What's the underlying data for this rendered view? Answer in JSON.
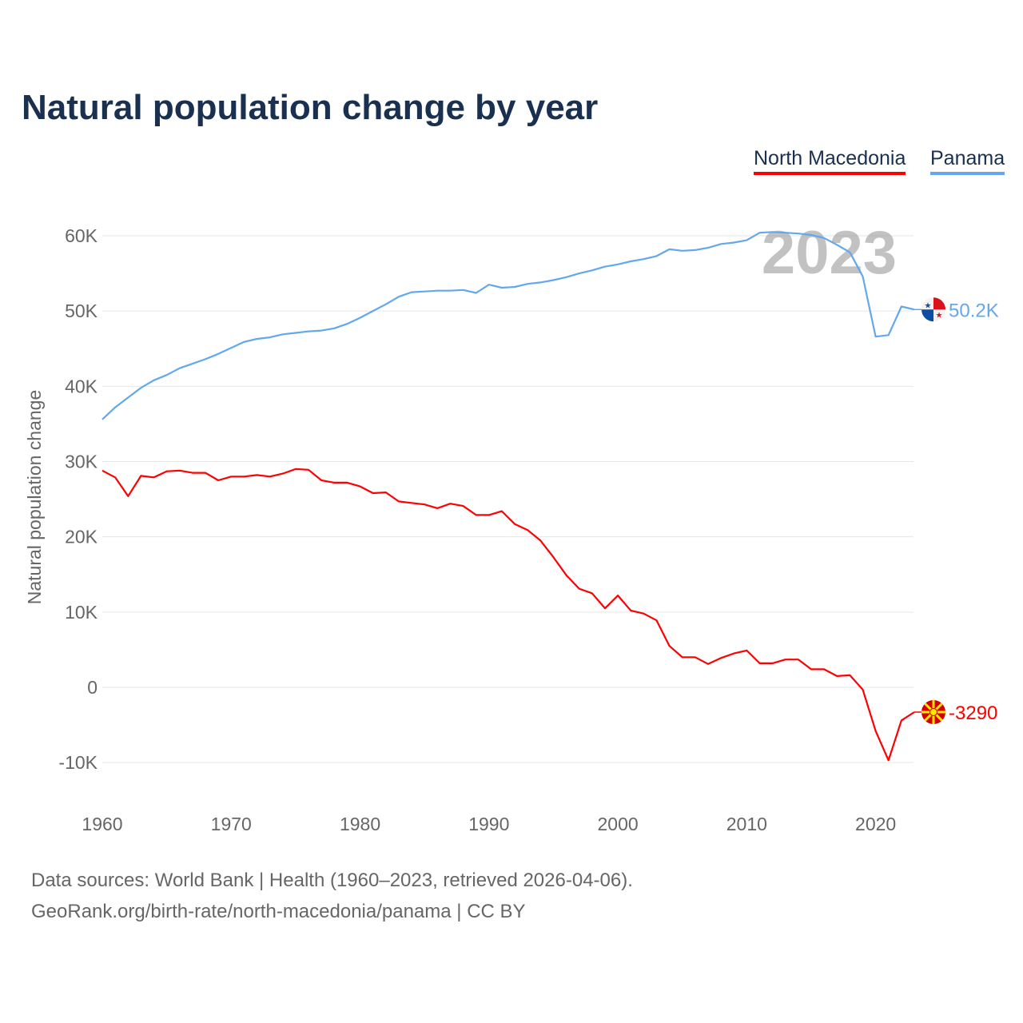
{
  "title": "Natural population change by year",
  "footer": {
    "line1": "Data sources: World Bank | Health (1960–2023, retrieved 2026-04-06).",
    "line2": "GeoRank.org/birth-rate/north-macedonia/panama | CC BY"
  },
  "chart_data": {
    "type": "line",
    "title": "Natural population change by year",
    "xlabel": "",
    "ylabel": "Natural population change",
    "xlim": [
      1960,
      2023
    ],
    "ylim": [
      -10000,
      60000
    ],
    "year_overlay": "2023",
    "x_ticks": [
      "1960",
      "1970",
      "1980",
      "1990",
      "2000",
      "2010",
      "2020"
    ],
    "y_ticks": [
      {
        "value": -10000,
        "label": "-10K"
      },
      {
        "value": 0,
        "label": "0"
      },
      {
        "value": 10000,
        "label": "10K"
      },
      {
        "value": 20000,
        "label": "20K"
      },
      {
        "value": 30000,
        "label": "30K"
      },
      {
        "value": 40000,
        "label": "40K"
      },
      {
        "value": 50000,
        "label": "50K"
      },
      {
        "value": 60000,
        "label": "60K"
      }
    ],
    "grid": true,
    "legend_position": "top-right",
    "x_start": 1960,
    "series": [
      {
        "name": "North Macedonia",
        "color": "#ff0000",
        "end_label": "-3290",
        "flag_icon": "north-macedonia-flag-icon",
        "values": [
          28800,
          27900,
          25400,
          28100,
          27900,
          28700,
          28800,
          28500,
          28500,
          27500,
          28000,
          28000,
          28200,
          28000,
          28400,
          29000,
          28900,
          27500,
          27200,
          27200,
          26700,
          25800,
          25900,
          24700,
          24500,
          24300,
          23800,
          24400,
          24100,
          22900,
          22900,
          23400,
          21700,
          20900,
          19500,
          17300,
          14900,
          13100,
          12500,
          10500,
          12200,
          10200,
          9800,
          8900,
          5500,
          4000,
          4000,
          3100,
          3900,
          4500,
          4900,
          3200,
          3200,
          3700,
          3700,
          2400,
          2400,
          1500,
          1600,
          -300,
          -5800,
          -9700,
          -4400,
          -3290
        ]
      },
      {
        "name": "Panama",
        "color": "#63a8ec",
        "end_label": "50.2K",
        "flag_icon": "panama-flag-icon",
        "values": [
          35600,
          37200,
          38500,
          39800,
          40800,
          41500,
          42400,
          43000,
          43600,
          44300,
          45100,
          45900,
          46300,
          46500,
          46900,
          47100,
          47300,
          47400,
          47700,
          48300,
          49100,
          50000,
          50900,
          51900,
          52500,
          52600,
          52700,
          52700,
          52800,
          52400,
          53500,
          53100,
          53200,
          53600,
          53800,
          54100,
          54500,
          55000,
          55400,
          55900,
          56200,
          56600,
          56900,
          57300,
          58200,
          58000,
          58100,
          58400,
          58900,
          59100,
          59400,
          60400,
          60500,
          60400,
          60300,
          60100,
          59700,
          58800,
          57800,
          54600,
          46600,
          46800,
          50600,
          50200
        ]
      }
    ]
  }
}
